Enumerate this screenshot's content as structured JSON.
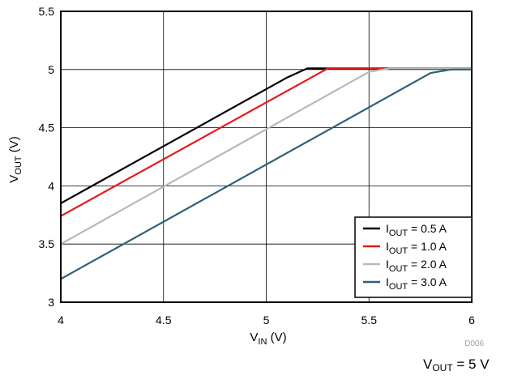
{
  "chart_data": {
    "type": "line",
    "xlim": [
      4,
      6
    ],
    "ylim": [
      3,
      5.5
    ],
    "x_ticks": [
      "4",
      "4.5",
      "5",
      "5.5",
      "6"
    ],
    "y_ticks": [
      "3",
      "3.5",
      "4",
      "4.5",
      "5",
      "5.5"
    ],
    "xlabel": {
      "main": "V",
      "sub": "IN",
      "unit": " (V)"
    },
    "ylabel": {
      "main": "V",
      "sub": "OUT",
      "unit": " (V)"
    },
    "grid": true,
    "legend_position": "bottom-right",
    "series": [
      {
        "name": {
          "main": "I",
          "sub": "OUT",
          "rest": " = 0.5 A"
        },
        "color": "#000000",
        "points": [
          [
            4,
            3.85
          ],
          [
            5.1,
            4.93
          ],
          [
            5.2,
            5.01
          ],
          [
            6,
            5.01
          ]
        ]
      },
      {
        "name": {
          "main": "I",
          "sub": "OUT",
          "rest": " = 1.0 A"
        },
        "color": "#e41a1c",
        "points": [
          [
            4,
            3.74
          ],
          [
            5.3,
            5.01
          ],
          [
            6,
            5.01
          ]
        ]
      },
      {
        "name": {
          "main": "I",
          "sub": "OUT",
          "rest": " = 2.0 A"
        },
        "color": "#b8b8b8",
        "points": [
          [
            4,
            3.5
          ],
          [
            5.5,
            4.98
          ],
          [
            5.6,
            5.01
          ],
          [
            6,
            5.01
          ]
        ]
      },
      {
        "name": {
          "main": "I",
          "sub": "OUT",
          "rest": " = 3.0 A"
        },
        "color": "#2e6079",
        "points": [
          [
            4,
            3.2
          ],
          [
            5.8,
            4.97
          ],
          [
            5.9,
            5.0
          ],
          [
            6,
            5.0
          ]
        ]
      }
    ],
    "code": "D006",
    "caption": {
      "main": "V",
      "sub": "OUT",
      "rest": " = 5 V"
    }
  }
}
